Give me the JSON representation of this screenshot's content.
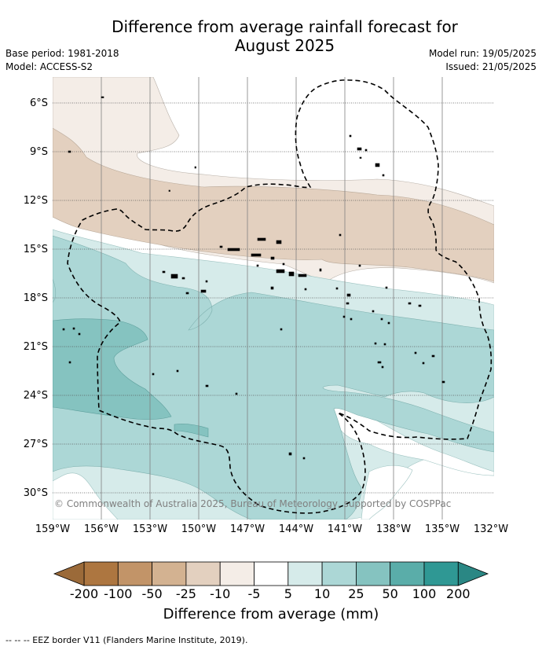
{
  "title_line1": "Difference from average rainfall forecast for",
  "title_line2": "August 2025",
  "base_period": "Base period: 1981-2018",
  "model": "Model: ACCESS-S2",
  "model_run": "Model run: 19/05/2025",
  "issued": "Issued: 21/05/2025",
  "lat_labels": [
    "6°S",
    "9°S",
    "12°S",
    "15°S",
    "18°S",
    "21°S",
    "24°S",
    "27°S",
    "30°S"
  ],
  "lon_labels": [
    "159°W",
    "156°W",
    "153°W",
    "150°W",
    "147°W",
    "144°W",
    "141°W",
    "138°W",
    "135°W",
    "132°W"
  ],
  "copyright": "© Commonwealth of Australia 2025, Bureau of Meteorology, supported by COSPPac",
  "colorbar": {
    "title": "Difference from average (mm)",
    "ticks": [
      "-200",
      "-100",
      "-50",
      "-25",
      "-10",
      "-5",
      "5",
      "10",
      "25",
      "50",
      "100",
      "200"
    ],
    "colors": [
      "#ad7640",
      "#c29468",
      "#d3b291",
      "#e3d0bf",
      "#f4ede7",
      "#ffffff",
      "#d6ebea",
      "#acd7d6",
      "#85c3c0",
      "#5aada9",
      "#2f9894"
    ],
    "low_extend_color": "#9b6a39",
    "high_extend_color": "#2a8784"
  },
  "footnote": "--  --  -- EEZ border V11 (Flanders Marine Institute, 2019)."
}
